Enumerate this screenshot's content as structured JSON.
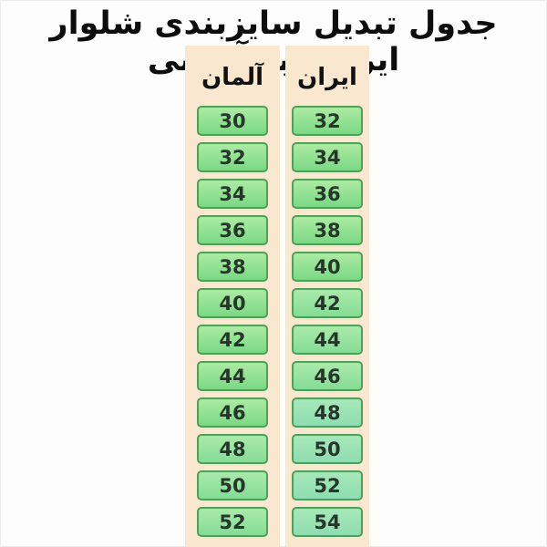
{
  "title": "جدول تبدیل سایزبندی شلوار ایرانی به آلمانی",
  "chart_data": {
    "type": "table",
    "title": "جدول تبدیل سایزبندی شلوار ایرانی به آلمانی",
    "columns": [
      {
        "id": "germany",
        "label": "آلمان",
        "values": [
          "30",
          "32",
          "34",
          "36",
          "38",
          "40",
          "42",
          "44",
          "46",
          "48",
          "50",
          "52"
        ]
      },
      {
        "id": "iran",
        "label": "ایران",
        "values": [
          "32",
          "34",
          "36",
          "38",
          "40",
          "42",
          "44",
          "46",
          "48",
          "50",
          "52",
          "54"
        ]
      }
    ],
    "rows_iran_to_germany": [
      [
        32,
        30
      ],
      [
        34,
        32
      ],
      [
        36,
        34
      ],
      [
        38,
        36
      ],
      [
        40,
        38
      ],
      [
        42,
        40
      ],
      [
        44,
        42
      ],
      [
        46,
        44
      ],
      [
        48,
        46
      ],
      [
        50,
        48
      ],
      [
        52,
        50
      ],
      [
        54,
        52
      ]
    ]
  },
  "colors": {
    "page_bg": "#fdfdfd",
    "strip_bg": "#fae7d0",
    "cell_top": "#abeba3",
    "cell_bottom": "#7bd884",
    "cell_teal_top": "#a6e8b8",
    "cell_teal_bottom": "#8eddb2",
    "cell_border": "#4f9f58",
    "number_text": "#26362a",
    "title_text": "#0d0d0d"
  }
}
